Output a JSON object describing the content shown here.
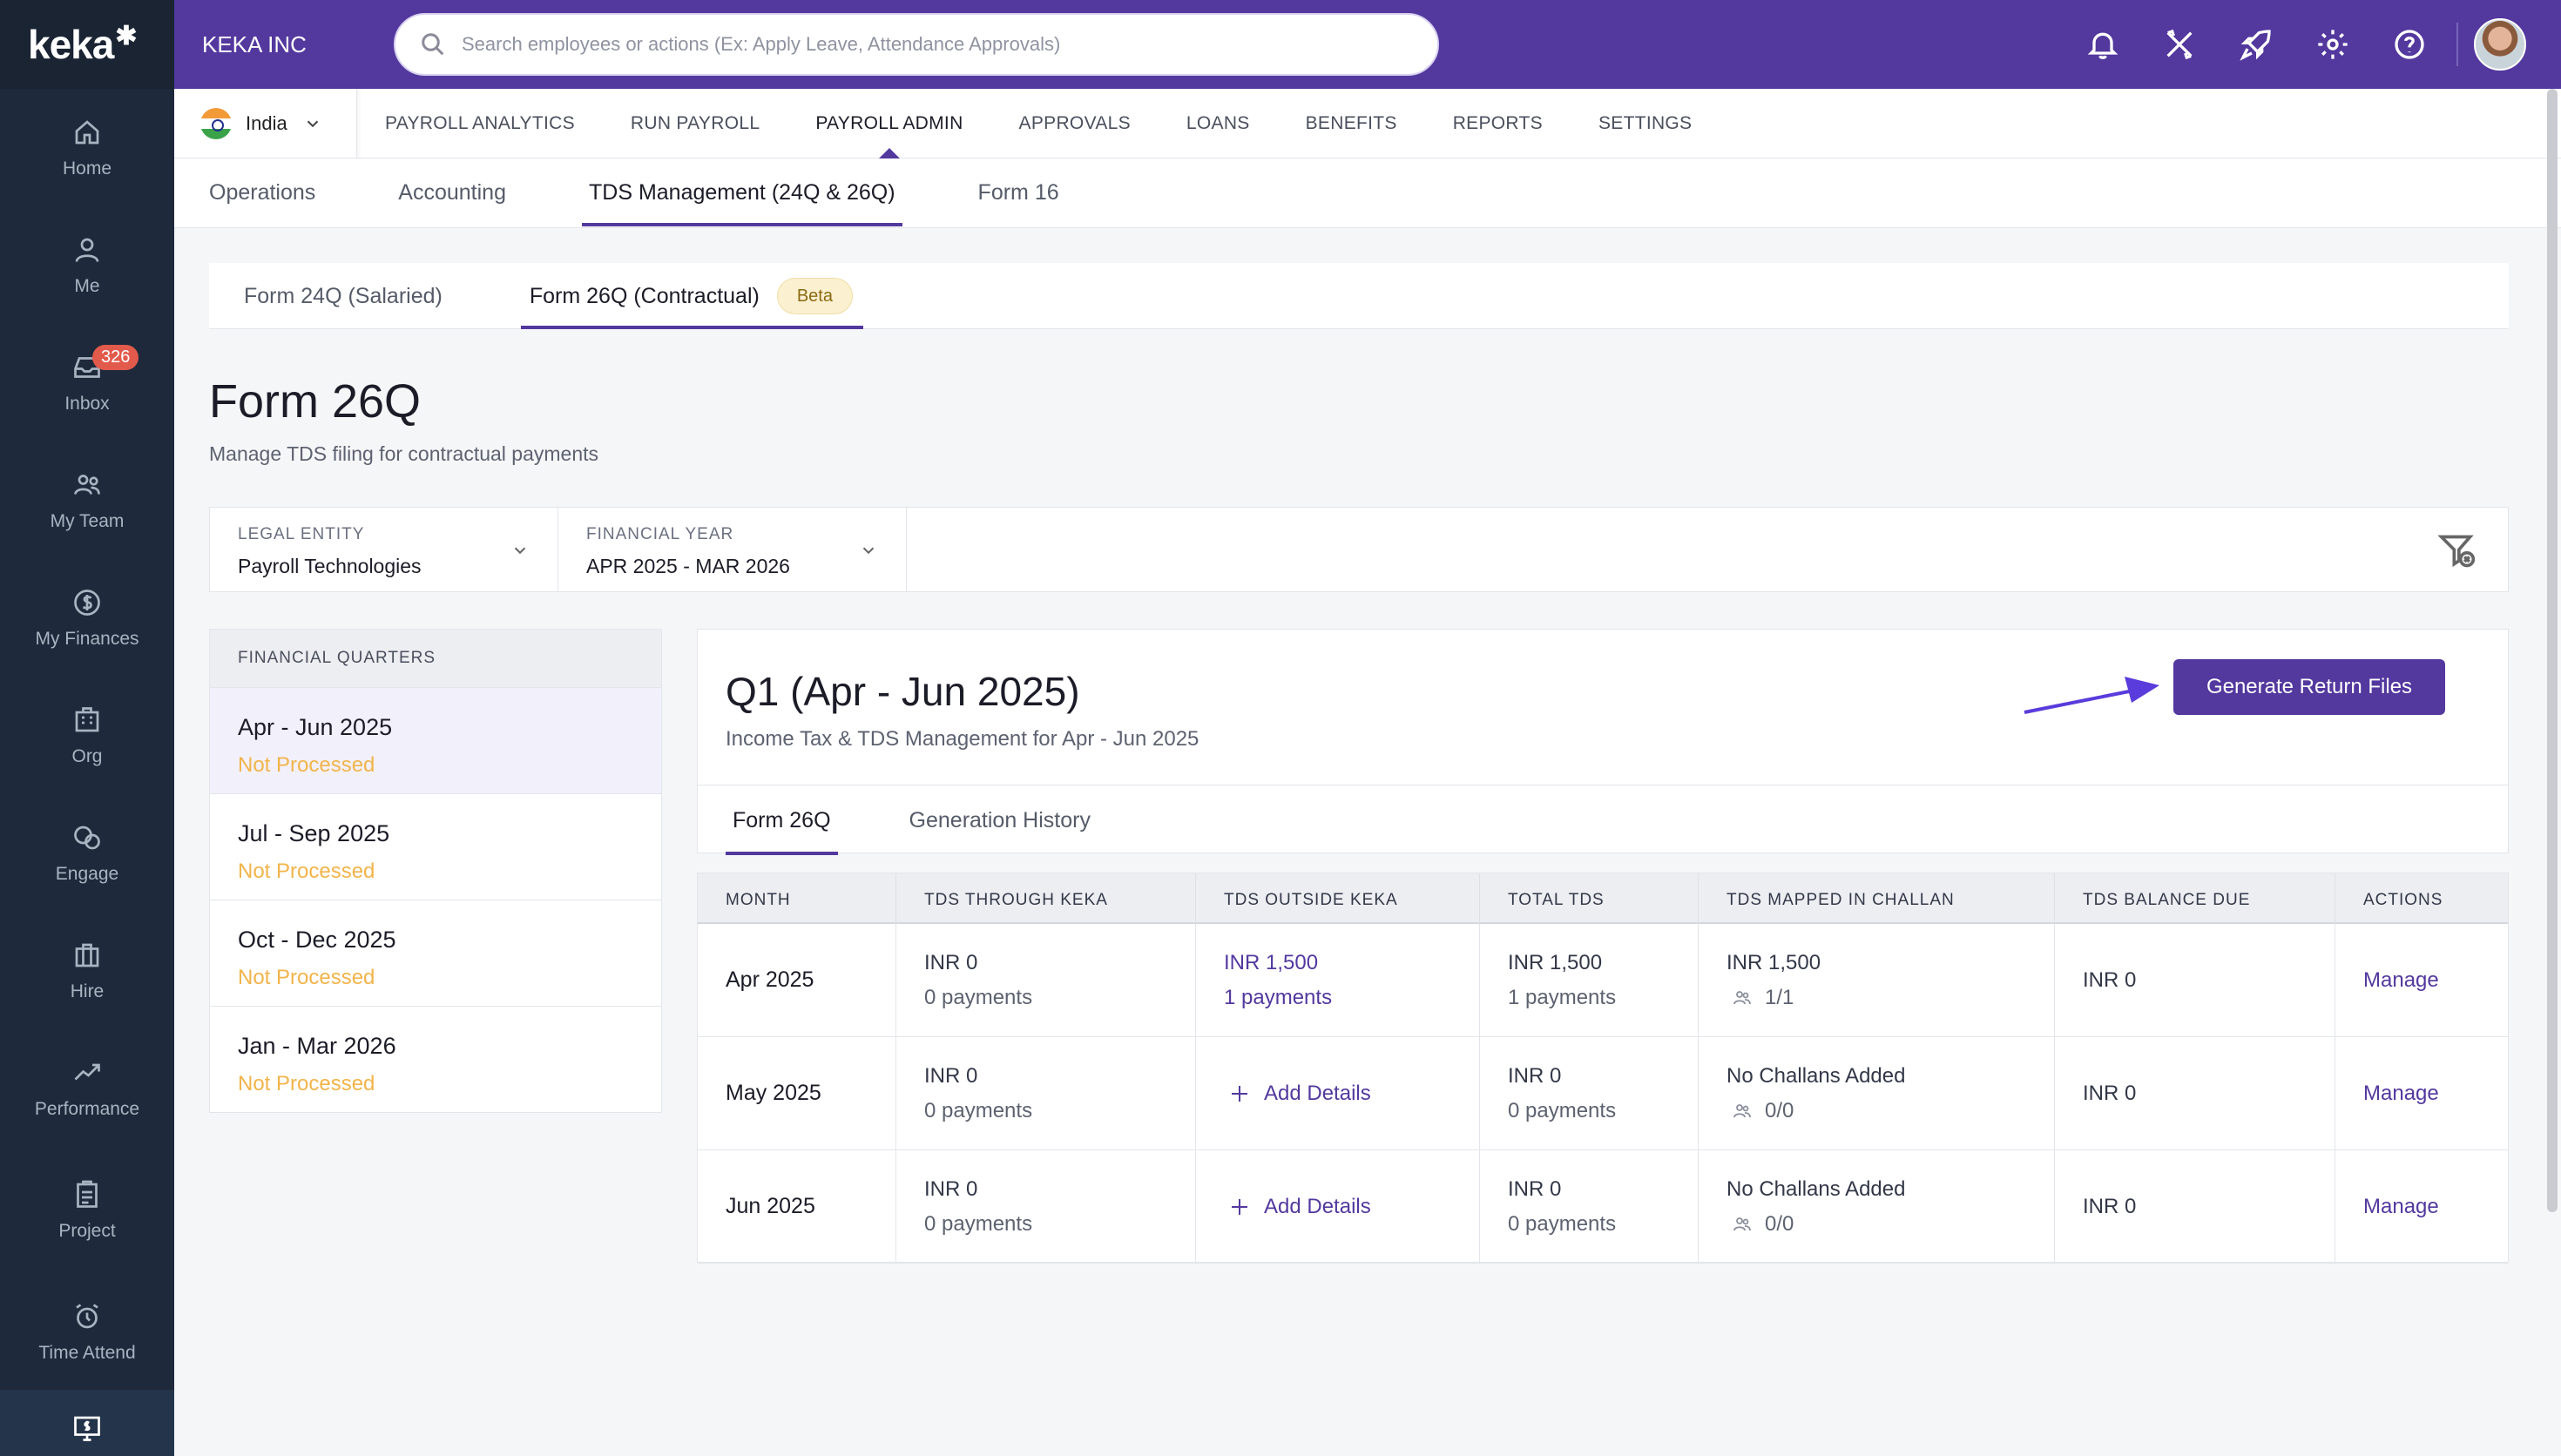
{
  "brand": {
    "logo": "keka",
    "accent": "#53389e",
    "rail_bg": "#1e2a3b",
    "pending": "#f2b44a"
  },
  "rail": {
    "items": [
      {
        "label": "Home",
        "icon": "home-icon"
      },
      {
        "label": "Me",
        "icon": "person-icon"
      },
      {
        "label": "Inbox",
        "icon": "inbox-icon",
        "badge": "326"
      },
      {
        "label": "My Team",
        "icon": "team-icon"
      },
      {
        "label": "My Finances",
        "icon": "dollar-icon"
      },
      {
        "label": "Org",
        "icon": "org-icon"
      },
      {
        "label": "Engage",
        "icon": "engage-icon"
      },
      {
        "label": "Hire",
        "icon": "briefcase-icon"
      },
      {
        "label": "Performance",
        "icon": "trend-icon"
      },
      {
        "label": "Project",
        "icon": "clipboard-icon"
      },
      {
        "label": "Time Attend",
        "icon": "alarm-icon"
      }
    ],
    "active_icon": "payroll-monitor-icon"
  },
  "topbar": {
    "company": "KEKA INC",
    "search_placeholder": "Search employees or actions (Ex: Apply Leave, Attendance Approvals)",
    "icons": [
      "bell-icon",
      "tools-icon",
      "rocket-icon",
      "gear-icon",
      "help-icon"
    ]
  },
  "mainnav": {
    "country": "India",
    "items": [
      "PAYROLL ANALYTICS",
      "RUN PAYROLL",
      "PAYROLL ADMIN",
      "APPROVALS",
      "LOANS",
      "BENEFITS",
      "REPORTS",
      "SETTINGS"
    ],
    "active": "PAYROLL ADMIN"
  },
  "subnav": {
    "items": [
      "Operations",
      "Accounting",
      "TDS Management (24Q & 26Q)",
      "Form 16"
    ],
    "active": "TDS Management (24Q & 26Q)"
  },
  "formtabs": {
    "tab1": "Form 24Q (Salaried)",
    "tab2": "Form 26Q (Contractual)",
    "badge": "Beta"
  },
  "page": {
    "title": "Form 26Q",
    "subtitle": "Manage TDS filing for contractual payments"
  },
  "filters": {
    "legal_entity_label": "LEGAL ENTITY",
    "legal_entity_value": "Payroll Technologies",
    "fy_label": "FINANCIAL YEAR",
    "fy_value": "APR 2025 - MAR 2026"
  },
  "quarters": {
    "header": "FINANCIAL QUARTERS",
    "items": [
      {
        "name": "Apr - Jun 2025",
        "status": "Not Processed"
      },
      {
        "name": "Jul - Sep 2025",
        "status": "Not Processed"
      },
      {
        "name": "Oct - Dec 2025",
        "status": "Not Processed"
      },
      {
        "name": "Jan - Mar 2026",
        "status": "Not Processed"
      }
    ]
  },
  "qcard": {
    "title": "Q1 (Apr - Jun 2025)",
    "subtitle": "Income Tax & TDS Management for Apr - Jun 2025",
    "button": "Generate Return Files",
    "tabs": [
      "Form 26Q",
      "Generation History"
    ]
  },
  "table": {
    "columns": [
      "MONTH",
      "TDS THROUGH KEKA",
      "TDS OUTSIDE KEKA",
      "TOTAL TDS",
      "TDS MAPPED IN CHALLAN",
      "TDS BALANCE DUE",
      "ACTIONS"
    ],
    "rows": [
      {
        "month": "Apr 2025",
        "keka_amt": "INR 0",
        "keka_pay": "0 payments",
        "outside_amt": "INR 1,500",
        "outside_pay": "1 payments",
        "total_amt": "INR 1,500",
        "total_pay": "1 payments",
        "challan": "INR 1,500",
        "challan_count": "1/1",
        "balance": "INR 0",
        "action": "Manage"
      },
      {
        "month": "May 2025",
        "keka_amt": "INR 0",
        "keka_pay": "0 payments",
        "outside_add": "Add Details",
        "total_amt": "INR 0",
        "total_pay": "0 payments",
        "challan": "No Challans Added",
        "challan_count": "0/0",
        "balance": "INR 0",
        "action": "Manage"
      },
      {
        "month": "Jun 2025",
        "keka_amt": "INR 0",
        "keka_pay": "0 payments",
        "outside_add": "Add Details",
        "total_amt": "INR 0",
        "total_pay": "0 payments",
        "challan": "No Challans Added",
        "challan_count": "0/0",
        "balance": "INR 0",
        "action": "Manage"
      }
    ]
  }
}
